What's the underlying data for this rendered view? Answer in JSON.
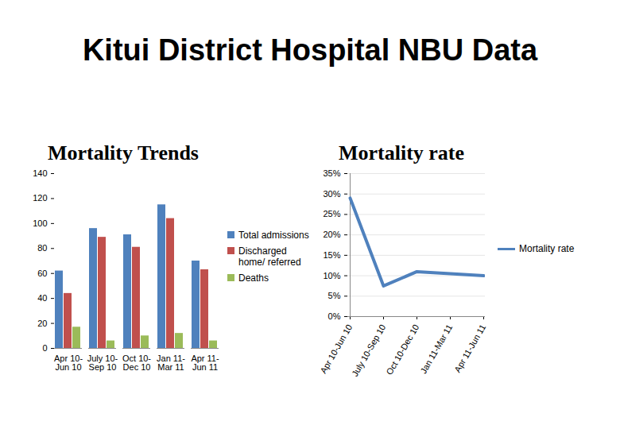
{
  "title": "Kitui District Hospital NBU Data",
  "chart_data": [
    {
      "type": "bar",
      "title": "Mortality Trends",
      "categories": [
        "Apr 10-Jun 10",
        "July 10-Sep 10",
        "Oct 10-Dec 10",
        "Jan 11-Mar 11",
        "Apr 11-Jun 11"
      ],
      "series": [
        {
          "name": "Total admissions",
          "color": "#4f81bd",
          "values": [
            62,
            96,
            91,
            115,
            70
          ]
        },
        {
          "name": "Discharged home/ referred",
          "color": "#c0504d",
          "values": [
            44,
            89,
            81,
            104,
            63
          ]
        },
        {
          "name": "Deaths",
          "color": "#9bbb59",
          "values": [
            17,
            6,
            10,
            12,
            6
          ]
        }
      ],
      "ylim": [
        0,
        140
      ],
      "yticks": [
        0,
        20,
        40,
        60,
        80,
        100,
        120,
        140
      ],
      "grid": false,
      "legend": "right"
    },
    {
      "type": "line",
      "title": "Mortality rate",
      "categories": [
        "Apr 10-Jun 10",
        "July 10-Sep 10",
        "Oct 10-Dec 10",
        "Jan 11-Mar 11",
        "Apr 11-Jun 11"
      ],
      "series": [
        {
          "name": "Mortality rate",
          "color": "#4f81bd",
          "values": [
            29,
            7.5,
            11,
            10.5,
            10
          ]
        }
      ],
      "ylim": [
        0,
        35
      ],
      "yticks": [
        {
          "value": 0,
          "label": "0%"
        },
        {
          "value": 5,
          "label": "5%"
        },
        {
          "value": 10,
          "label": "10%"
        },
        {
          "value": 15,
          "label": "15%"
        },
        {
          "value": 20,
          "label": "20%"
        },
        {
          "value": 25,
          "label": "25%"
        },
        {
          "value": 30,
          "label": "30%"
        },
        {
          "value": 35,
          "label": "35%"
        }
      ],
      "grid": true,
      "legend": "right"
    }
  ]
}
